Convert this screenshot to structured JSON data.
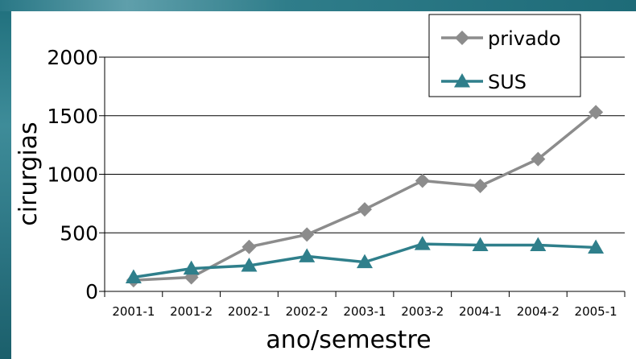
{
  "chart_data": {
    "type": "line",
    "title": "",
    "xlabel": "ano/semestre",
    "ylabel": "cirurgias",
    "categories": [
      "2001-1",
      "2001-2",
      "2002-1",
      "2002-2",
      "2003-1",
      "2003-2",
      "2004-1",
      "2004-2",
      "2005-1"
    ],
    "ylim": [
      0,
      2000
    ],
    "yticks": [
      0,
      500,
      1000,
      1500,
      2000
    ],
    "grid": true,
    "legend_position": "top-right",
    "series": [
      {
        "name": "privado",
        "marker": "diamond",
        "color": "#8c8c8c",
        "values": [
          95,
          120,
          380,
          485,
          700,
          945,
          900,
          1130,
          1530
        ]
      },
      {
        "name": "SUS",
        "marker": "triangle",
        "color": "#2f7f8b",
        "values": [
          120,
          195,
          220,
          300,
          250,
          405,
          395,
          395,
          375
        ]
      }
    ]
  }
}
